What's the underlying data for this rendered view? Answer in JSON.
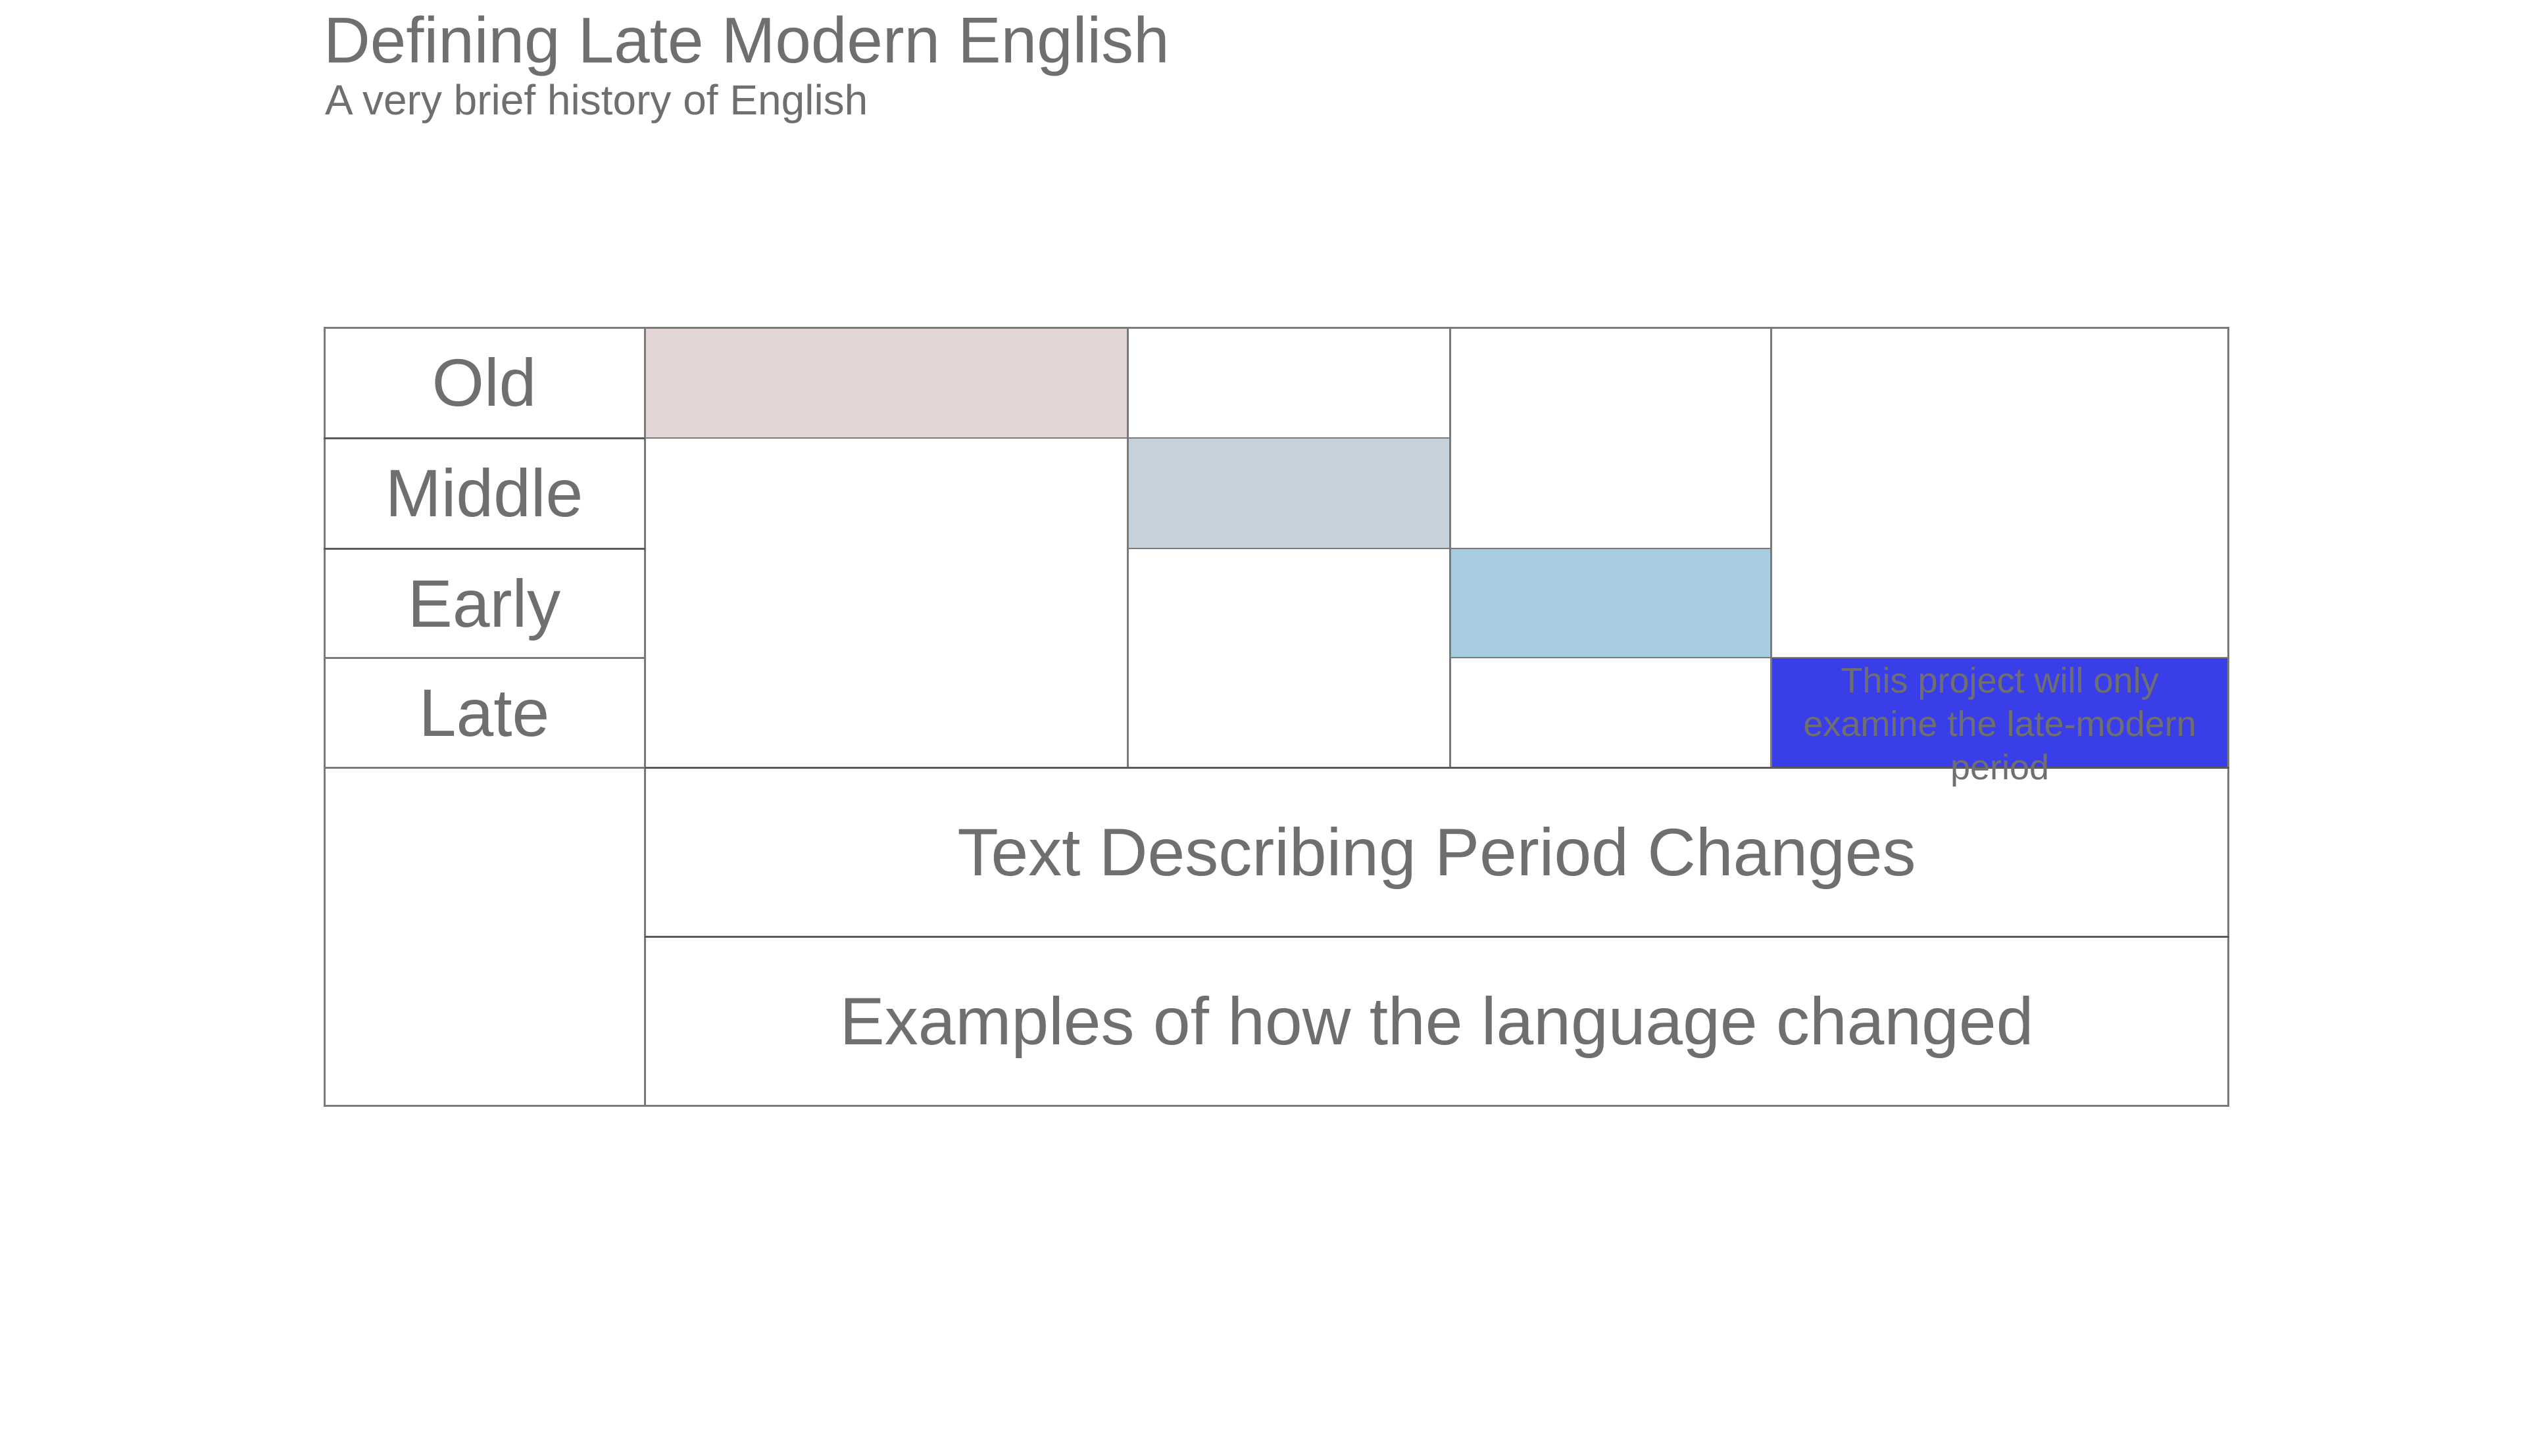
{
  "header": {
    "title": "Defining Late Modern English",
    "subtitle": "A very brief history of English"
  },
  "periods": [
    {
      "label": "Old",
      "color": "#e4d6d6"
    },
    {
      "label": "Middle",
      "color": "#c5d2db"
    },
    {
      "label": "Early",
      "color": "#a9cde0"
    },
    {
      "label": "Late",
      "color": "#3a3ee8"
    }
  ],
  "late_note": "This project will only examine the late-modern period",
  "rows": {
    "changes": "Text Describing Period Changes",
    "examples": "Examples of how the language changed"
  }
}
